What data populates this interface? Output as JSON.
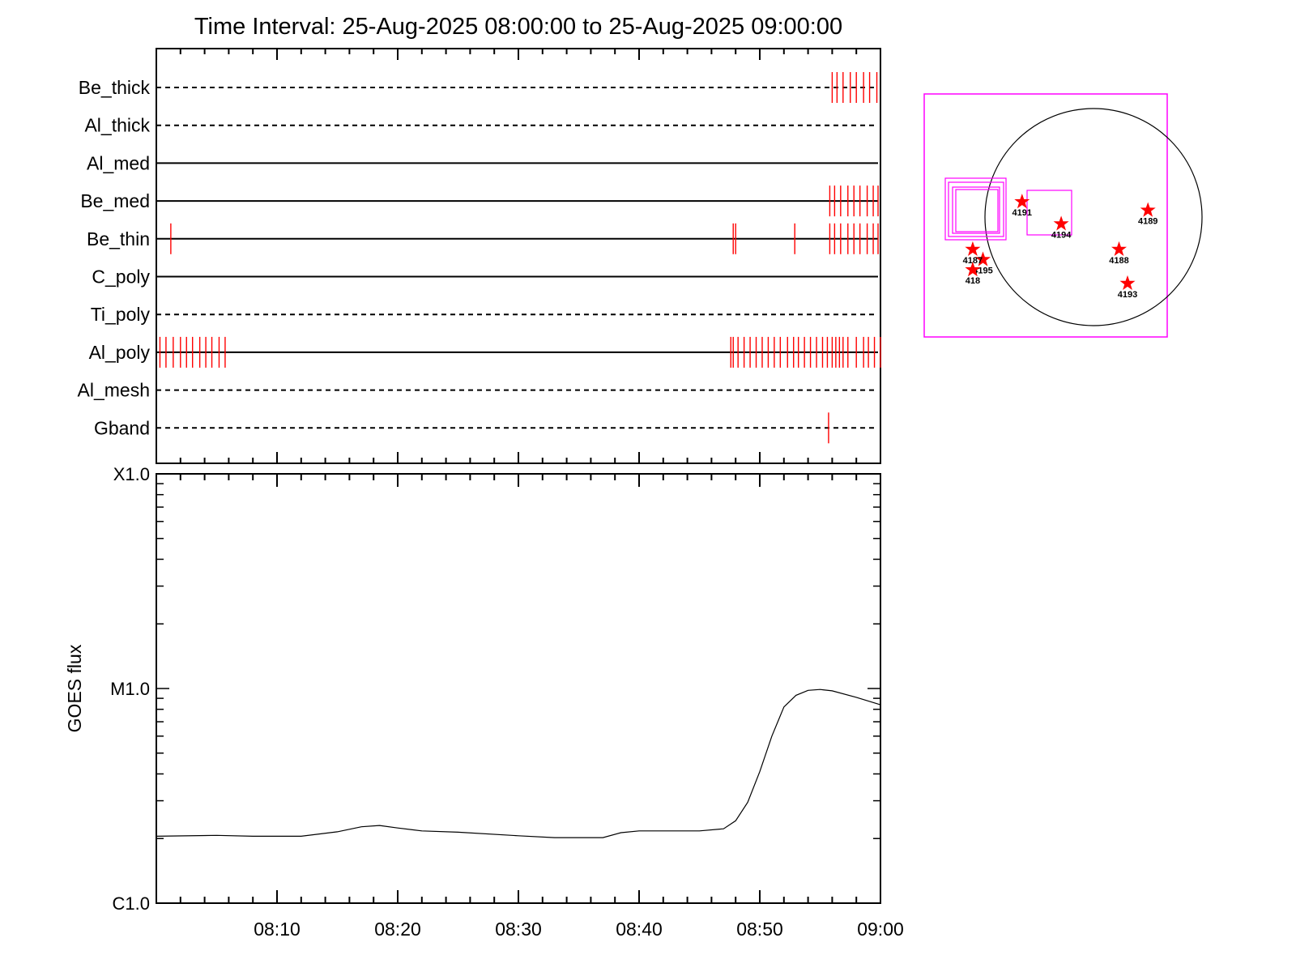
{
  "title": "Time Interval: 25-Aug-2025 08:00:00 to 25-Aug-2025 09:00:00",
  "chart_data": [
    {
      "type": "timeline",
      "x_range_minutes": [
        0,
        60
      ],
      "channels": [
        {
          "name": "Be_thick",
          "style": "dashed",
          "events": [
            56.0,
            56.4,
            56.9,
            57.5,
            58.0,
            58.6,
            59.1,
            59.7
          ]
        },
        {
          "name": "Al_thick",
          "style": "dashed",
          "events": []
        },
        {
          "name": "Al_med",
          "style": "solid",
          "events": []
        },
        {
          "name": "Be_med",
          "style": "solid",
          "events": [
            55.8,
            56.2,
            56.7,
            57.3,
            57.8,
            58.3,
            58.9,
            59.4,
            59.8
          ]
        },
        {
          "name": "Be_thin",
          "style": "solid",
          "events": [
            1.2,
            47.8,
            48.0,
            52.9,
            55.8,
            56.2,
            56.7,
            57.3,
            57.8,
            58.3,
            58.9,
            59.4,
            59.8
          ]
        },
        {
          "name": "C_poly",
          "style": "solid",
          "events": []
        },
        {
          "name": "Ti_poly",
          "style": "dashed",
          "events": []
        },
        {
          "name": "Al_poly",
          "style": "solid",
          "events": [
            0.3,
            0.8,
            1.4,
            2.0,
            2.5,
            3.0,
            3.6,
            4.1,
            4.6,
            5.2,
            5.7,
            47.6,
            47.8,
            48.2,
            48.7,
            49.2,
            49.7,
            50.2,
            50.7,
            51.2,
            51.7,
            52.3,
            52.8,
            53.2,
            53.7,
            54.2,
            54.7,
            55.2,
            55.6,
            56.0,
            56.3,
            56.6,
            56.9,
            57.3,
            58.0,
            58.6,
            59.0,
            59.5,
            60.0
          ]
        },
        {
          "name": "Al_mesh",
          "style": "dashed",
          "events": []
        },
        {
          "name": "Gband",
          "style": "dashed",
          "events": [
            55.7
          ]
        }
      ],
      "event_color": "#ff0000"
    },
    {
      "type": "line",
      "ylabel": "GOES flux",
      "y_scale": "log",
      "ylim": [
        1e-06,
        0.0001
      ],
      "y_tick_labels": [
        {
          "label": "X1.0",
          "value": 0.0001
        },
        {
          "label": "M1.0",
          "value": 1e-05
        },
        {
          "label": "C1.0",
          "value": 1e-06
        }
      ],
      "x_tick_labels": [
        "08:10",
        "08:20",
        "08:30",
        "08:40",
        "08:50",
        "09:00"
      ],
      "x_tick_minutes": [
        10,
        20,
        30,
        40,
        50,
        60
      ],
      "x_range_minutes": [
        0,
        60
      ],
      "series": [
        {
          "x": [
            0,
            5,
            8,
            12,
            15,
            17,
            18.5,
            20,
            22,
            25,
            30,
            33,
            35,
            37,
            38.5,
            40,
            42,
            45,
            47,
            48,
            49,
            50,
            51,
            52,
            53,
            54,
            55,
            56,
            58,
            60
          ],
          "y": [
            2.05e-06,
            2.07e-06,
            2.05e-06,
            2.05e-06,
            2.15e-06,
            2.27e-06,
            2.3e-06,
            2.24e-06,
            2.17e-06,
            2.14e-06,
            2.06e-06,
            2.02e-06,
            2.02e-06,
            2.02e-06,
            2.13e-06,
            2.17e-06,
            2.17e-06,
            2.17e-06,
            2.22e-06,
            2.42e-06,
            2.95e-06,
            4.1e-06,
            6e-06,
            8.2e-06,
            9.3e-06,
            9.8e-06,
            9.9e-06,
            9.75e-06,
            9.1e-06,
            8.4e-06
          ]
        }
      ]
    },
    {
      "type": "scatter",
      "description_context": "solar disk with active regions",
      "points": [
        {
          "label": "4191",
          "x": -2.1,
          "y": 0.45
        },
        {
          "label": "4194",
          "x": -0.95,
          "y": -0.2
        },
        {
          "label": "4189",
          "x": 1.6,
          "y": 0.2
        },
        {
          "label": "4188",
          "x": 0.75,
          "y": -0.95
        },
        {
          "label": "4193",
          "x": 1.0,
          "y": -1.95
        },
        {
          "label": "4195",
          "x": -3.25,
          "y": -1.25
        },
        {
          "label": "4187",
          "x": -3.55,
          "y": -0.95
        },
        {
          "label": "418",
          "x": -3.55,
          "y": -1.55
        }
      ],
      "colors": {
        "disk": "#000000",
        "frames": "#ff00ff",
        "markers": "#ff0000"
      }
    }
  ]
}
